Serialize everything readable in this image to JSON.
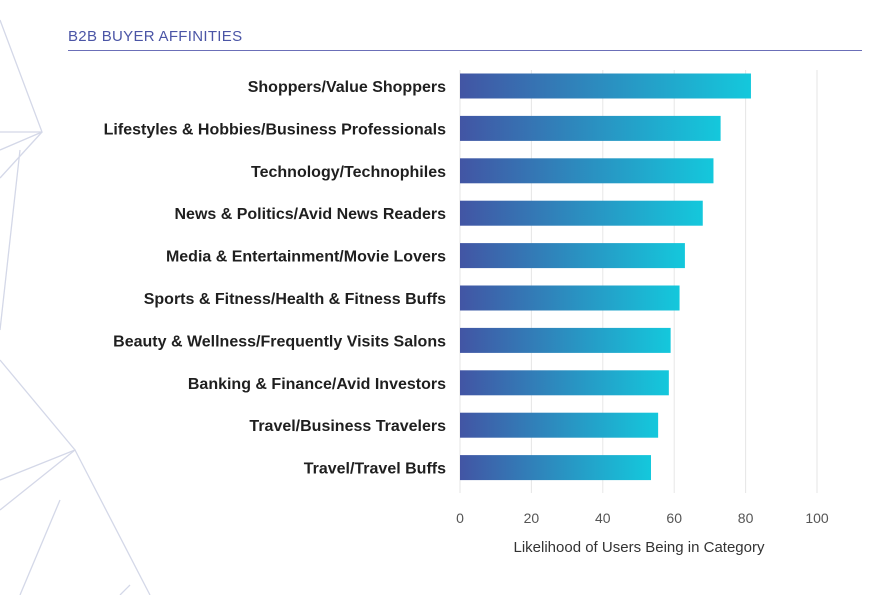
{
  "header": {
    "title": "B2B BUYER AFFINITIES"
  },
  "colors": {
    "bar_start": "#4255a4",
    "bar_end": "#14c8dc",
    "header": "#4b55a6",
    "grid": "#e6e6e6"
  },
  "chart_data": {
    "type": "bar",
    "orientation": "horizontal",
    "title": "",
    "xlabel": "Likelihood of Users Being in Category",
    "ylabel": "",
    "xlim": [
      0,
      100
    ],
    "xticks": [
      0,
      20,
      40,
      60,
      80,
      100
    ],
    "grid": true,
    "categories": [
      "Shoppers/Value Shoppers",
      "Lifestyles & Hobbies/Business Professionals",
      "Technology/Technophiles",
      "News & Politics/Avid News Readers",
      "Media & Entertainment/Movie Lovers",
      "Sports & Fitness/Health & Fitness Buffs",
      "Beauty & Wellness/Frequently Visits Salons",
      "Banking & Finance/Avid Investors",
      "Travel/Business Travelers",
      "Travel/Travel Buffs"
    ],
    "values": [
      81.5,
      73,
      71,
      68,
      63,
      61.5,
      59,
      58.5,
      55.5,
      53.5
    ]
  }
}
